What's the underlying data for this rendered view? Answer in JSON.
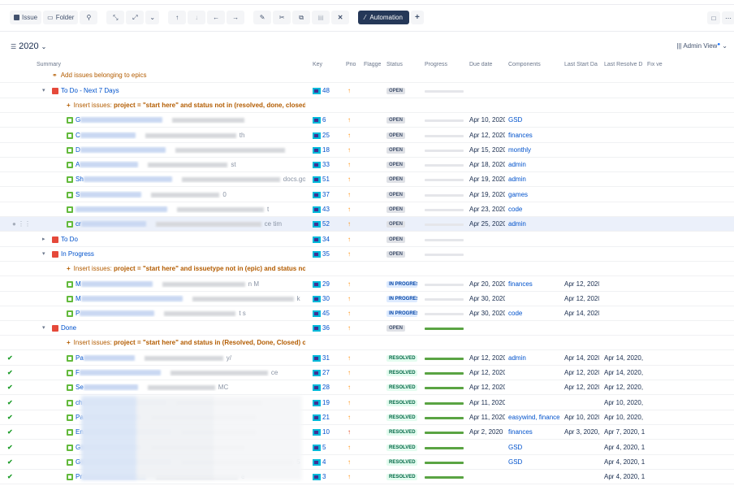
{
  "toolbar": {
    "issue": "Issue",
    "folder": "Folder",
    "automation": "Automation",
    "add": "+"
  },
  "structure": {
    "title": "2020",
    "view": "Admin View"
  },
  "columns": [
    "Summary",
    "Key",
    "Prio",
    "Flagge",
    "Status",
    "Progress",
    "Due date",
    "Components",
    "Last Start Da",
    "Last Resolve D",
    "Fix ve"
  ],
  "colors": {
    "accent": "#0052cc",
    "insert": "#b35c00",
    "resolved_bar": "#5aa443",
    "automation_bg": "#253858"
  },
  "rows": [
    {
      "type": "add",
      "text": "Add issues belonging to epics"
    },
    {
      "type": "epic",
      "expanded": true,
      "label": "To Do - Next 7 Days",
      "key": "48",
      "status": "OPEN",
      "progress": 0
    },
    {
      "type": "insert",
      "label": "Insert issues:",
      "query": "project = \"start here\" and status not in (resolved, done, closed, \"I"
    },
    {
      "type": "story",
      "prefix": "G",
      "tail": "",
      "key": "6",
      "status": "OPEN",
      "progress": 0,
      "due": "Apr 10, 2020",
      "comp": "GSD"
    },
    {
      "type": "story",
      "prefix": "C",
      "tail": "th",
      "key": "25",
      "status": "OPEN",
      "progress": 0,
      "due": "Apr 12, 2020",
      "comp": "finances"
    },
    {
      "type": "story",
      "prefix": "D",
      "tail": "",
      "key": "18",
      "status": "OPEN",
      "progress": 0,
      "due": "Apr 15, 2020",
      "comp": "monthly"
    },
    {
      "type": "story",
      "prefix": "A",
      "tail": "st",
      "key": "33",
      "status": "OPEN",
      "progress": 0,
      "due": "Apr 18, 2020",
      "comp": "admin"
    },
    {
      "type": "story",
      "prefix": "Sh",
      "tail": "docs.goog",
      "key": "51",
      "status": "OPEN",
      "progress": 0,
      "due": "Apr 19, 2020",
      "comp": "admin"
    },
    {
      "type": "story",
      "prefix": "S",
      "tail": "0",
      "key": "37",
      "status": "OPEN",
      "progress": 0,
      "due": "Apr 19, 2020",
      "comp": "games"
    },
    {
      "type": "story",
      "prefix": "",
      "tail": "t",
      "key": "43",
      "status": "OPEN",
      "progress": 0,
      "due": "Apr 23, 2020",
      "comp": "code"
    },
    {
      "type": "story",
      "prefix": "cr",
      "tail": "ce tim",
      "key": "52",
      "status": "OPEN",
      "progress": 0,
      "due": "Apr 25, 2020",
      "comp": "admin",
      "selected": true
    },
    {
      "type": "epic",
      "expanded": false,
      "label": "To Do",
      "key": "34",
      "status": "OPEN",
      "progress": 0
    },
    {
      "type": "epic",
      "expanded": true,
      "label": "In Progress",
      "key": "35",
      "status": "OPEN",
      "progress": 0
    },
    {
      "type": "insert",
      "label": "Insert issues:",
      "query": "project = \"start here\" and issuetype not in (epic) and status not in"
    },
    {
      "type": "story",
      "prefix": "M",
      "tail": "n M",
      "key": "29",
      "status": "IN PROGRESS",
      "progress": 0,
      "due": "Apr 20, 2020",
      "comp": "finances",
      "start": "Apr 12, 2020"
    },
    {
      "type": "story",
      "prefix": "M",
      "tail": "k",
      "key": "30",
      "status": "IN PROGRESS",
      "progress": 0,
      "due": "Apr 30, 2020",
      "comp": "",
      "start": "Apr 12, 2020"
    },
    {
      "type": "story",
      "prefix": "P",
      "tail": "t s",
      "key": "45",
      "status": "IN PROGRESS",
      "progress": 0,
      "due": "Apr 30, 2020",
      "comp": "code",
      "start": "Apr 14, 2020"
    },
    {
      "type": "epic",
      "expanded": true,
      "label": "Done",
      "key": "36",
      "status": "OPEN",
      "progress": 100
    },
    {
      "type": "insert",
      "label": "Insert issues:",
      "query": "project = \"start here\" and status in (Resolved, Done, Closed) orde"
    },
    {
      "type": "story",
      "done": true,
      "prefix": "Pa",
      "tail": "y/",
      "key": "31",
      "status": "RESOLVED",
      "progress": 100,
      "due": "Apr 12, 2020",
      "comp": "admin",
      "start": "Apr 14, 2020",
      "resolve": "Apr 14, 2020,"
    },
    {
      "type": "story",
      "done": true,
      "prefix": "F",
      "tail": "ce",
      "key": "27",
      "status": "RESOLVED",
      "progress": 100,
      "due": "Apr 12, 2020",
      "comp": "",
      "start": "Apr 12, 2020",
      "resolve": "Apr 14, 2020,"
    },
    {
      "type": "story",
      "done": true,
      "prefix": "Se",
      "tail": "MC",
      "key": "28",
      "status": "RESOLVED",
      "progress": 100,
      "due": "Apr 12, 2020",
      "comp": "",
      "start": "Apr 12, 2020",
      "resolve": "Apr 12, 2020,"
    },
    {
      "type": "story",
      "done": true,
      "prefix": "ch",
      "tail": "",
      "key": "19",
      "status": "RESOLVED",
      "progress": 100,
      "due": "Apr 11, 2020",
      "comp": "",
      "start": "",
      "resolve": "Apr 10, 2020,"
    },
    {
      "type": "story",
      "done": true,
      "prefix": "Pa",
      "tail": "",
      "key": "21",
      "status": "RESOLVED",
      "progress": 100,
      "due": "Apr 11, 2020",
      "comp": "easywind, finances",
      "start": "Apr 10, 2020",
      "resolve": "Apr 10, 2020,"
    },
    {
      "type": "story",
      "done": true,
      "prefix": "En",
      "tail": "",
      "key": "10",
      "status": "RESOLVED",
      "progress": 100,
      "priority": "high",
      "due": "Apr 2, 2020",
      "comp": "finances",
      "start": "Apr 3, 2020,",
      "resolve": "Apr 7, 2020, 1"
    },
    {
      "type": "story",
      "done": true,
      "prefix": "G",
      "tail": "",
      "key": "5",
      "status": "RESOLVED",
      "progress": 100,
      "due": "",
      "comp": "GSD",
      "start": "",
      "resolve": "Apr 4, 2020, 1"
    },
    {
      "type": "story",
      "done": true,
      "prefix": "G",
      "tail": "5",
      "key": "4",
      "status": "RESOLVED",
      "progress": 100,
      "due": "",
      "comp": "GSD",
      "start": "",
      "resolve": "Apr 4, 2020, 1"
    },
    {
      "type": "story",
      "done": true,
      "prefix": "Pr",
      "tail": "e",
      "key": "3",
      "status": "RESOLVED",
      "progress": 100,
      "due": "",
      "comp": "",
      "start": "",
      "resolve": "Apr 4, 2020, 1"
    }
  ]
}
